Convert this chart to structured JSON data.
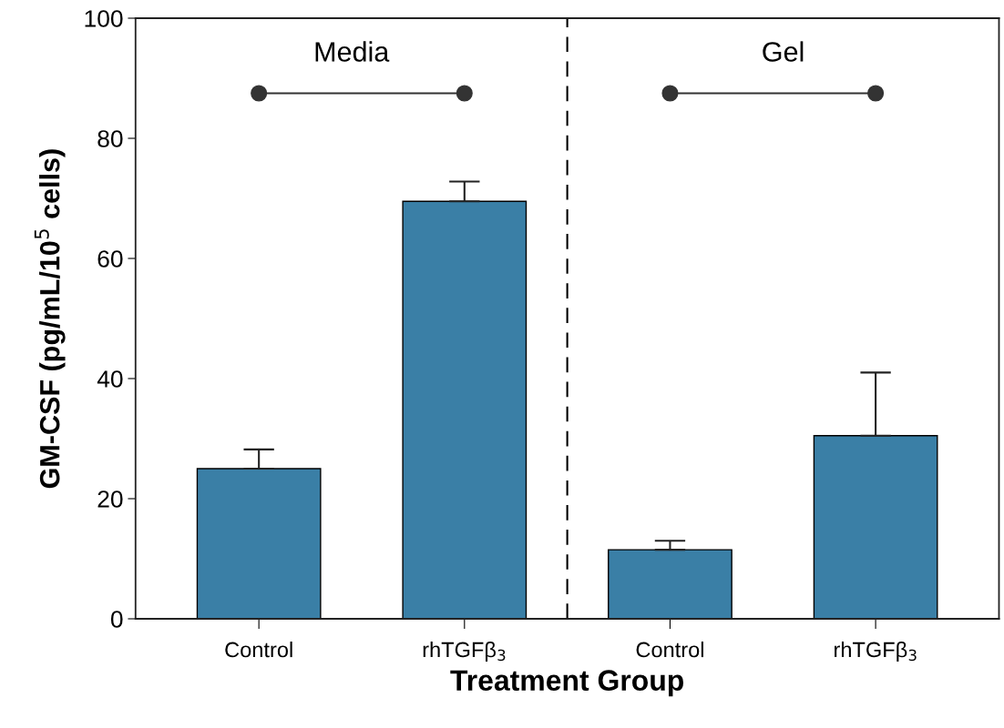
{
  "chart_data": {
    "type": "bar",
    "xlabel": "Treatment Group",
    "ylabel": "GM-CSF (pg/mL/10$^{5}$ cells)",
    "categories": [
      "Control",
      "rhTGFβ$_{3}$",
      "Control",
      "rhTGFβ$_{3}$"
    ],
    "values": [
      25,
      69.5,
      11.5,
      30.5
    ],
    "errors": [
      [
        25,
        28.2
      ],
      [
        69.5,
        72.8
      ],
      [
        11.5,
        13
      ],
      [
        30.5,
        41
      ]
    ],
    "color": "#3a7fa6",
    "ylim": [
      0,
      100
    ],
    "yticks": [
      0,
      20,
      40,
      60,
      80,
      100
    ],
    "annotations": [
      "Media",
      "Gel"
    ],
    "grid": false
  }
}
